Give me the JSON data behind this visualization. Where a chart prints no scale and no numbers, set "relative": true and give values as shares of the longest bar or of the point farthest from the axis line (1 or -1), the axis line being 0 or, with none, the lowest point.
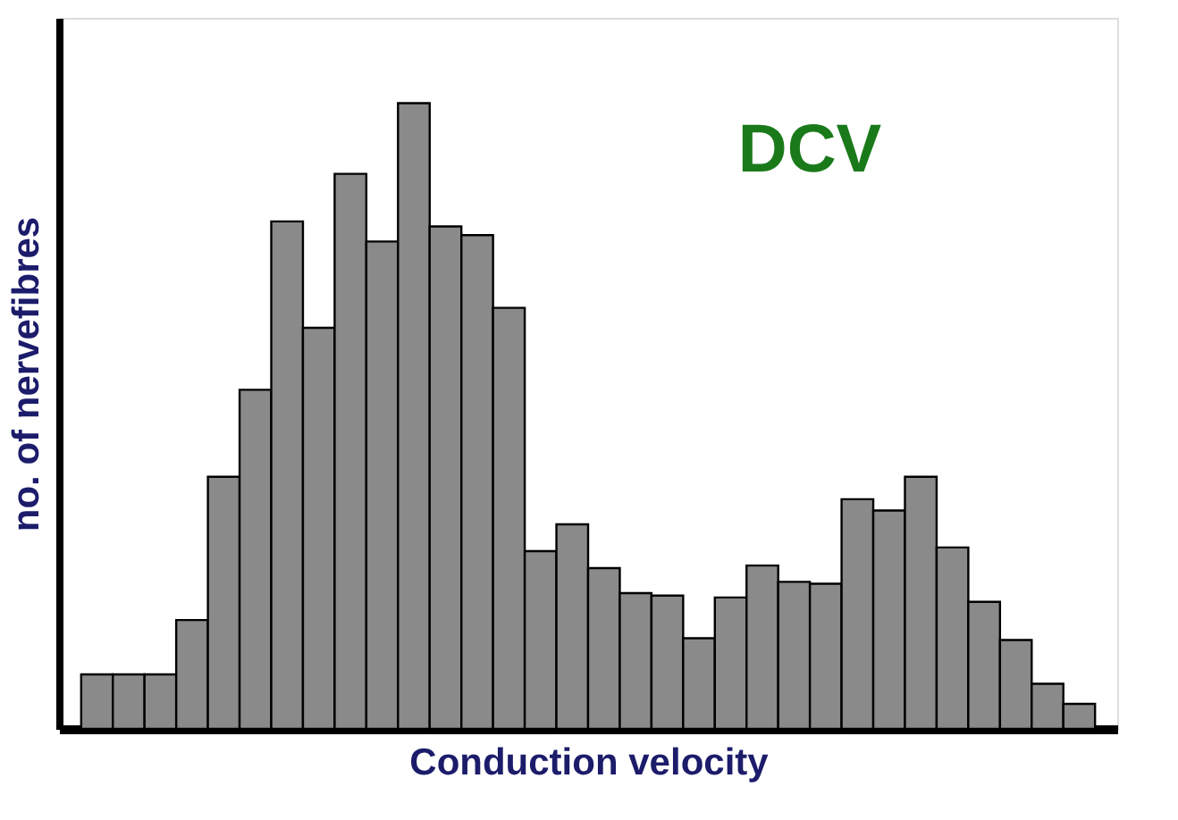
{
  "chart_data": {
    "type": "bar",
    "relative": true,
    "xlabel": "Conduction velocity",
    "ylabel": "no. of nervefibres",
    "color": "#8a8a8a",
    "annotations": [
      "DCV"
    ],
    "categories": [
      null,
      null,
      null,
      null,
      null,
      null,
      null,
      null,
      null,
      null,
      null,
      null,
      null,
      null,
      null,
      null,
      null,
      null,
      null,
      null,
      null,
      null,
      null,
      null,
      null,
      null,
      null,
      null,
      null,
      null,
      null,
      null
    ],
    "values": [
      0.087,
      0.087,
      0.087,
      0.174,
      0.403,
      0.542,
      0.811,
      0.641,
      0.887,
      0.779,
      1,
      0.803,
      0.789,
      0.673,
      0.284,
      0.327,
      0.257,
      0.217,
      0.213,
      0.145,
      0.21,
      0.261,
      0.235,
      0.232,
      0.367,
      0.349,
      0.403,
      0.29,
      0.203,
      0.142,
      0.072,
      0.04
    ]
  }
}
